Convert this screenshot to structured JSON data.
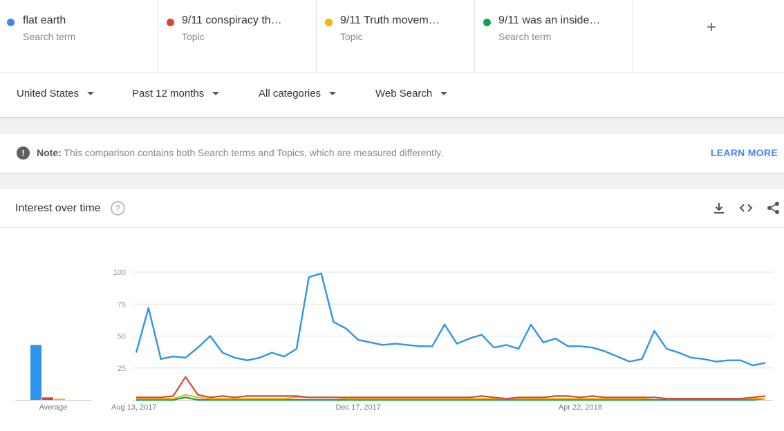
{
  "terms": [
    {
      "name": "flat earth",
      "type": "Search term",
      "color": "#4285f4"
    },
    {
      "name": "9/11 conspiracy th…",
      "type": "Topic",
      "color": "#db4437"
    },
    {
      "name": "9/11 Truth movem…",
      "type": "Topic",
      "color": "#f4b400"
    },
    {
      "name": "9/11 was an inside…",
      "type": "Search term",
      "color": "#0f9d58"
    }
  ],
  "add_label": "+",
  "filters": {
    "region": "United States",
    "time": "Past 12 months",
    "category": "All categories",
    "search_type": "Web Search"
  },
  "note": {
    "label": "Note:",
    "text": "This comparison contains both Search terms and Topics, which are measured differently.",
    "link": "LEARN MORE"
  },
  "panel": {
    "title": "Interest over time",
    "help_icon": "help-circle-icon",
    "tools": [
      "download-icon",
      "embed-code-icon",
      "share-icon"
    ]
  },
  "chart_data": {
    "type": "line",
    "x_tick_labels": [
      "Aug 13, 2017",
      "Dec 17, 2017",
      "Apr 22, 2018"
    ],
    "x_tick_index": [
      0,
      18,
      36
    ],
    "ylim": [
      0,
      100
    ],
    "y_ticks": [
      25,
      50,
      75,
      100
    ],
    "grid": true,
    "average_label": "Average",
    "averages": [
      43,
      2,
      1,
      0
    ],
    "series": [
      {
        "name": "flat earth",
        "color": "#2e94eb",
        "values": [
          37,
          72,
          32,
          34,
          33,
          41,
          50,
          37,
          33,
          31,
          33,
          37,
          34,
          40,
          96,
          99,
          61,
          56,
          47,
          45,
          43,
          44,
          43,
          42,
          42,
          59,
          44,
          48,
          51,
          41,
          43,
          40,
          59,
          45,
          48,
          42,
          42,
          41,
          38,
          34,
          30,
          32,
          54,
          40,
          37,
          33,
          32,
          30,
          31,
          31,
          27,
          29
        ]
      },
      {
        "name": "9/11 conspiracy th…",
        "color": "#db4437",
        "values": [
          2,
          2,
          2,
          3,
          18,
          4,
          2,
          3,
          2,
          3,
          3,
          3,
          3,
          3,
          2,
          2,
          2,
          2,
          2,
          2,
          2,
          2,
          2,
          2,
          2,
          2,
          2,
          2,
          3,
          2,
          1,
          2,
          2,
          2,
          3,
          3,
          2,
          3,
          2,
          2,
          2,
          2,
          2,
          1,
          1,
          1,
          1,
          1,
          1,
          1,
          2,
          3
        ]
      },
      {
        "name": "9/11 Truth movem…",
        "color": "#f4b400",
        "values": [
          1,
          1,
          1,
          1,
          4,
          2,
          1,
          1,
          1,
          1,
          1,
          1,
          1,
          2,
          2,
          2,
          2,
          1,
          1,
          1,
          1,
          1,
          1,
          1,
          1,
          1,
          1,
          1,
          1,
          1,
          1,
          1,
          1,
          1,
          1,
          1,
          1,
          1,
          1,
          1,
          1,
          1,
          2,
          1,
          1,
          1,
          1,
          1,
          1,
          1,
          1,
          1
        ]
      },
      {
        "name": "9/11 was an inside…",
        "color": "#0f9d58",
        "values": [
          0,
          0,
          0,
          0,
          2,
          0,
          0,
          0,
          0,
          0,
          0,
          0,
          0,
          0,
          0,
          0,
          0,
          0,
          0,
          0,
          0,
          0,
          0,
          0,
          0,
          0,
          0,
          0,
          0,
          0,
          0,
          0,
          0,
          0,
          0,
          0,
          0,
          0,
          0,
          0,
          0,
          0,
          0,
          0,
          0,
          0,
          0,
          0,
          0,
          0,
          0,
          1
        ]
      }
    ]
  }
}
